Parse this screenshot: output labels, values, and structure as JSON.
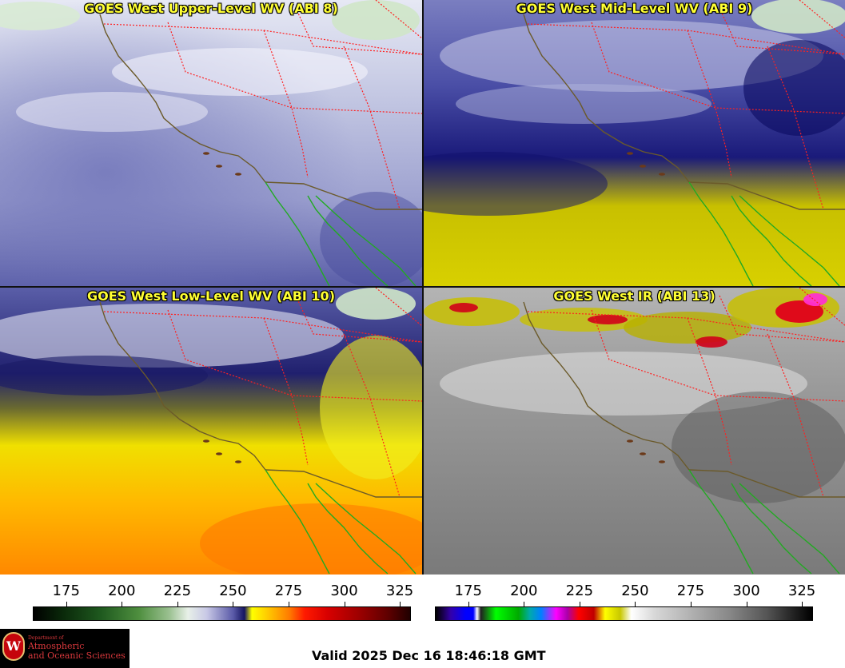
{
  "panels": [
    {
      "id": "upper_wv",
      "title": "GOES West Upper-Level WV (ABI 8)"
    },
    {
      "id": "mid_wv",
      "title": "GOES West Mid-Level WV (ABI 9)"
    },
    {
      "id": "low_wv",
      "title": "GOES West Low-Level WV (ABI 10)"
    },
    {
      "id": "ir",
      "title": "GOES West IR (ABI 13)"
    }
  ],
  "colorbars": {
    "left": {
      "ticks": [
        "175",
        "200",
        "225",
        "250",
        "275",
        "300",
        "325"
      ],
      "values": [
        175,
        200,
        225,
        250,
        275,
        300,
        325
      ],
      "range": [
        160,
        330
      ]
    },
    "right": {
      "ticks": [
        "175",
        "200",
        "225",
        "250",
        "275",
        "300",
        "325"
      ],
      "values": [
        175,
        200,
        225,
        250,
        275,
        300,
        325
      ],
      "range": [
        160,
        330
      ]
    }
  },
  "logo": {
    "dept_line": "Department of",
    "line1": "Atmospheric",
    "line2": "and Oceanic Sciences",
    "seal_letter": "W"
  },
  "valid_time": "Valid 2025 Dec 16 18:46:18 GMT",
  "colors": {
    "title_text": "#ffff33",
    "state_borders": "#ff2020",
    "coastline_us": "#6b5a2a",
    "coastline_mexico": "#22aa22"
  }
}
